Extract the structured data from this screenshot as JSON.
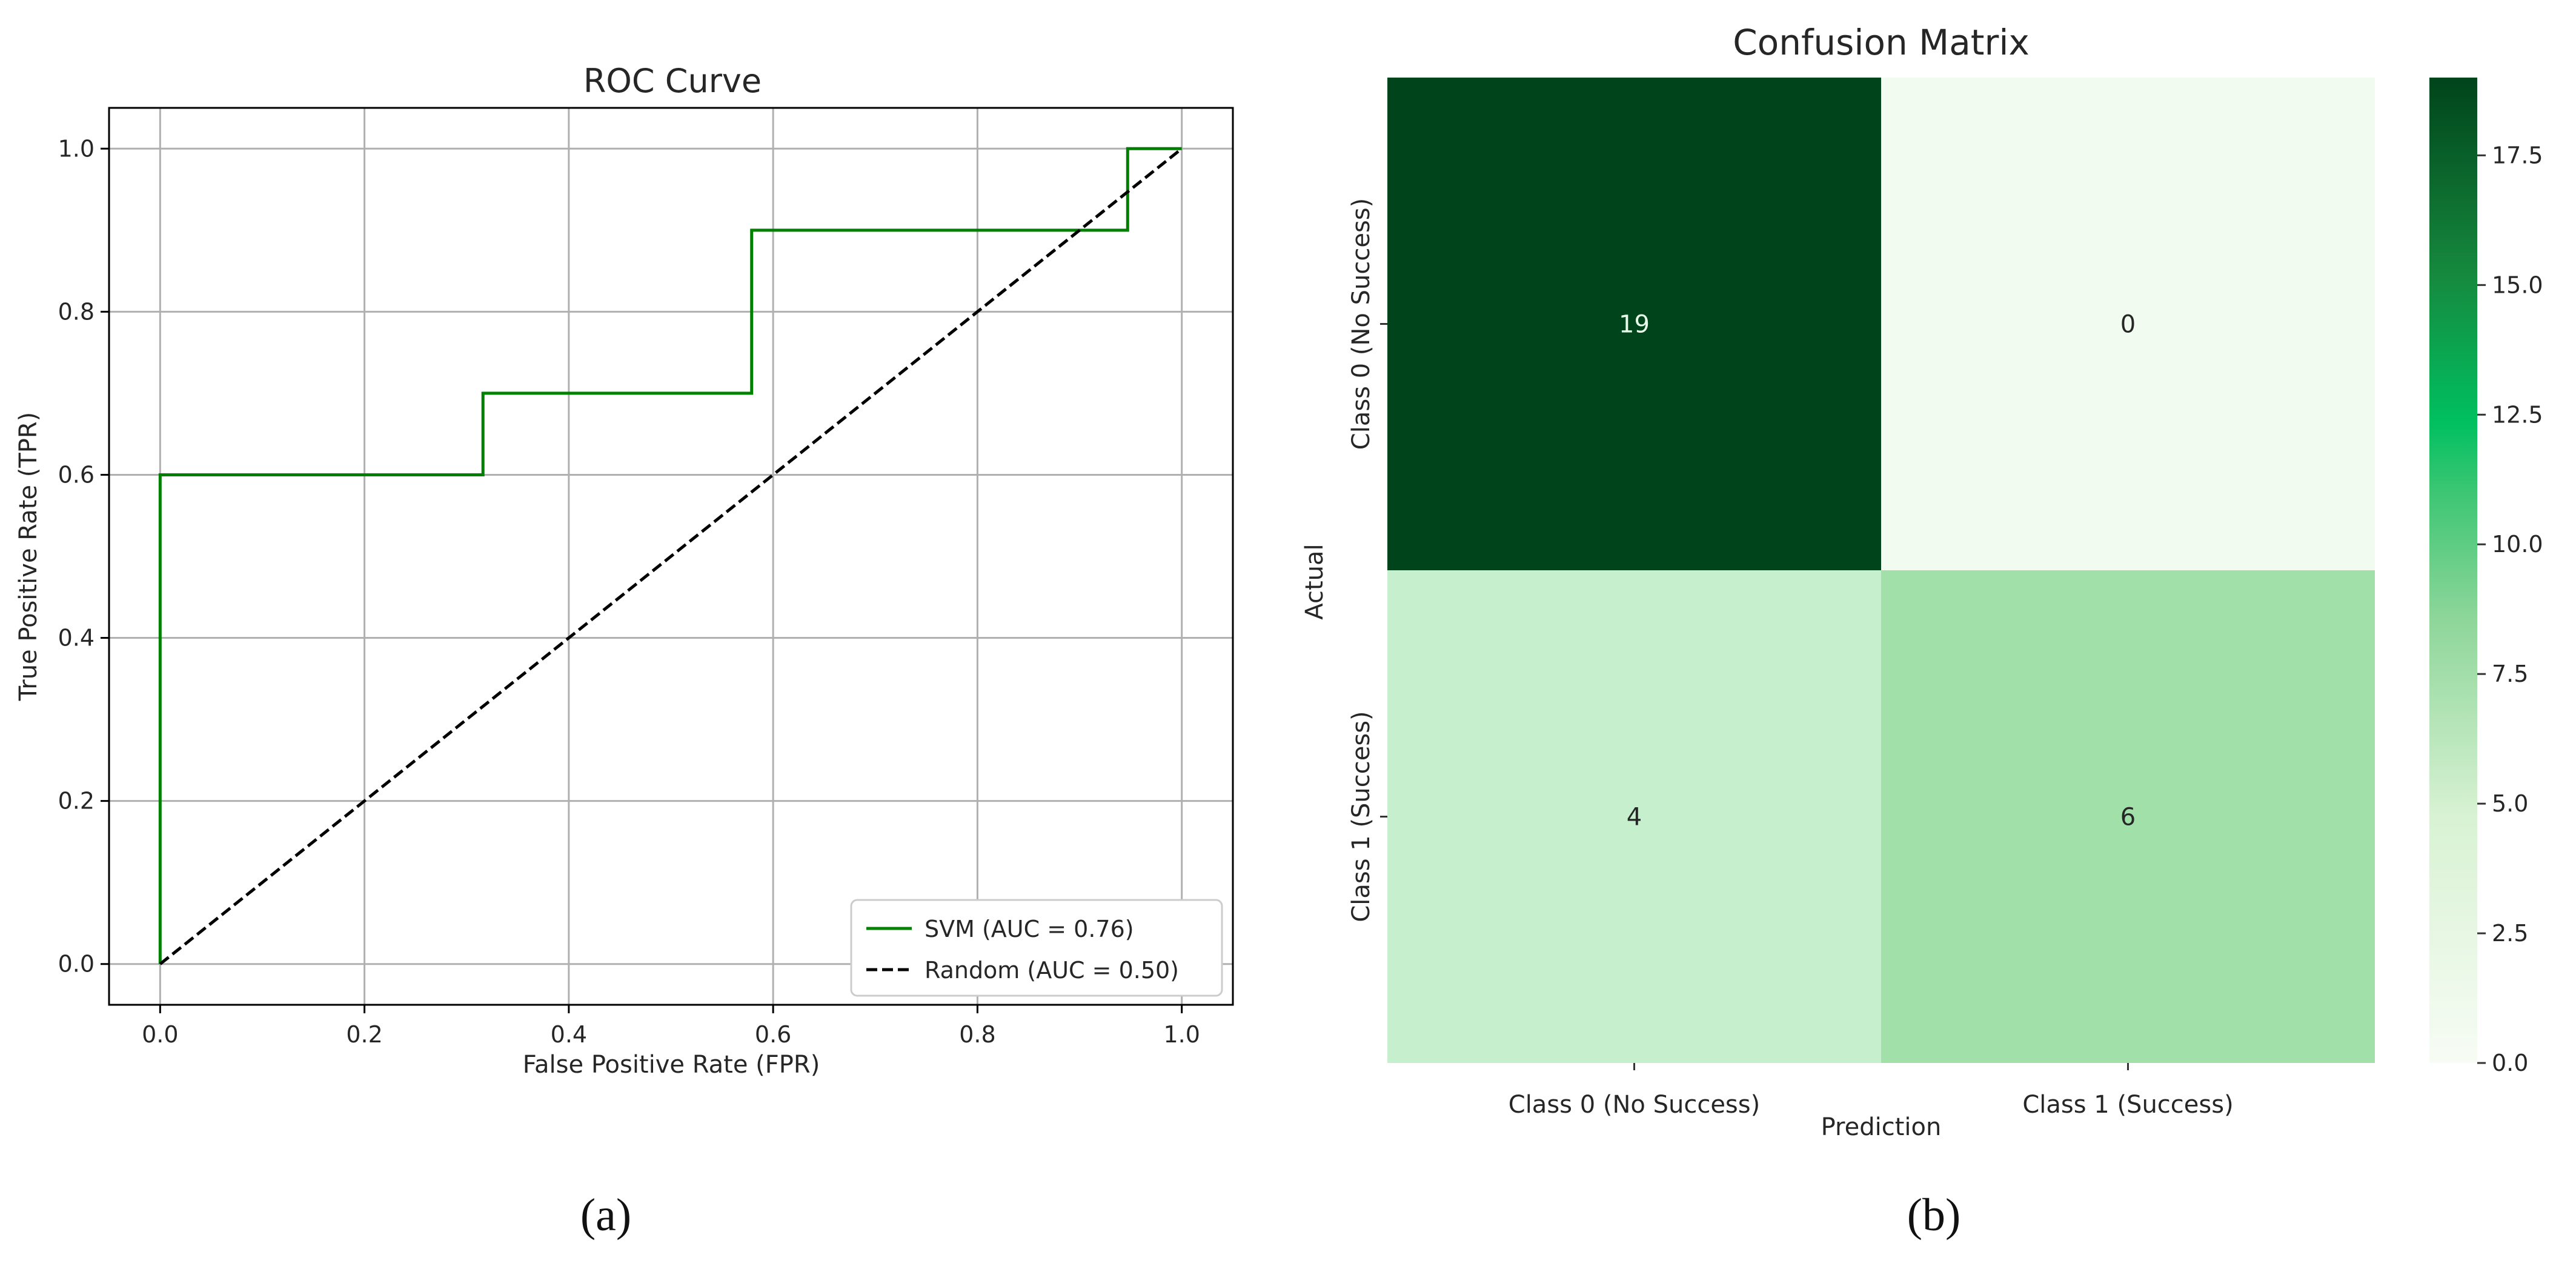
{
  "chart_data": [
    {
      "type": "line",
      "title": "ROC Curve",
      "xlabel": "False Positive Rate (FPR)",
      "ylabel": "True Positive Rate (TPR)",
      "xlim": [
        -0.05,
        1.05
      ],
      "ylim": [
        -0.05,
        1.05
      ],
      "xticks": [
        "0.0",
        "0.2",
        "0.4",
        "0.6",
        "0.8",
        "1.0"
      ],
      "yticks": [
        "0.0",
        "0.2",
        "0.4",
        "0.6",
        "0.8",
        "1.0"
      ],
      "grid": true,
      "legend_position": "lower-right",
      "series": [
        {
          "name": "SVM (AUC = 0.76)",
          "color": "#008000",
          "style": "step",
          "points": [
            [
              0,
              0
            ],
            [
              0,
              0.6
            ],
            [
              0.316,
              0.6
            ],
            [
              0.316,
              0.7
            ],
            [
              0.579,
              0.7
            ],
            [
              0.579,
              0.9
            ],
            [
              0.947,
              0.9
            ],
            [
              0.947,
              1.0
            ],
            [
              1.0,
              1.0
            ]
          ]
        },
        {
          "name": "Random (AUC = 0.50)",
          "color": "#000000",
          "style": "dashed",
          "points": [
            [
              0,
              0
            ],
            [
              1,
              1
            ]
          ]
        }
      ]
    },
    {
      "type": "heatmap",
      "title": "Confusion Matrix",
      "xlabel": "Prediction",
      "ylabel": "Actual",
      "x_categories": [
        "Class 0 (No Success)",
        "Class 1 (Success)"
      ],
      "y_categories": [
        "Class 0 (No Success)",
        "Class 1 (Success)"
      ],
      "values": [
        [
          19,
          0
        ],
        [
          4,
          6
        ]
      ],
      "colormap": "Greens",
      "colorbar_range": [
        0,
        19
      ],
      "colorbar_ticks": [
        "0.0",
        "2.5",
        "5.0",
        "7.5",
        "10.0",
        "12.5",
        "15.0",
        "17.5"
      ],
      "cell_colors": [
        [
          "#00441b",
          "#f2fbef"
        ],
        [
          "#c6efcd",
          "#a1e1a9"
        ]
      ],
      "text_colors": [
        [
          "#e8fbe9",
          "#262626"
        ],
        [
          "#262626",
          "#262626"
        ]
      ]
    }
  ],
  "captions": [
    "(a)",
    "(b)"
  ]
}
